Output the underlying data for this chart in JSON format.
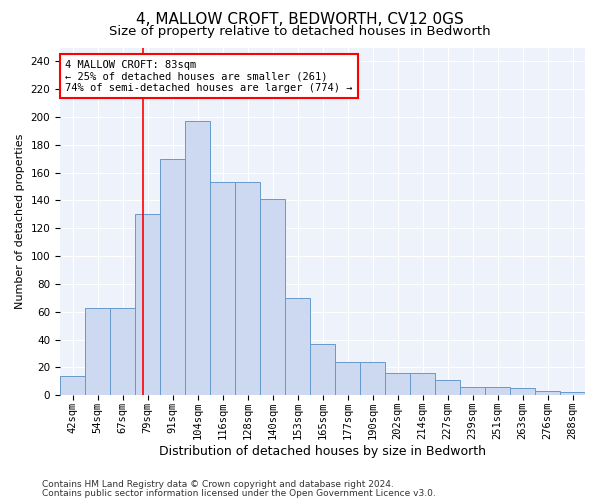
{
  "title": "4, MALLOW CROFT, BEDWORTH, CV12 0GS",
  "subtitle": "Size of property relative to detached houses in Bedworth",
  "xlabel": "Distribution of detached houses by size in Bedworth",
  "ylabel": "Number of detached properties",
  "categories": [
    "42sqm",
    "54sqm",
    "67sqm",
    "79sqm",
    "91sqm",
    "104sqm",
    "116sqm",
    "128sqm",
    "140sqm",
    "153sqm",
    "165sqm",
    "177sqm",
    "190sqm",
    "202sqm",
    "214sqm",
    "227sqm",
    "239sqm",
    "251sqm",
    "263sqm",
    "276sqm",
    "288sqm"
  ],
  "values": [
    14,
    63,
    63,
    130,
    170,
    197,
    153,
    153,
    141,
    70,
    37,
    24,
    24,
    16,
    16,
    11,
    6,
    6,
    5,
    3,
    2
  ],
  "bar_color": "#ccd9f0",
  "bar_edge_color": "#6699cc",
  "annotation_line1": "4 MALLOW CROFT: 83sqm",
  "annotation_line2": "← 25% of detached houses are smaller (261)",
  "annotation_line3": "74% of semi-detached houses are larger (774) →",
  "annotation_box_color": "white",
  "annotation_box_edge_color": "red",
  "vline_color": "red",
  "ylim": [
    0,
    250
  ],
  "yticks": [
    0,
    20,
    40,
    60,
    80,
    100,
    120,
    140,
    160,
    180,
    200,
    220,
    240
  ],
  "footer_line1": "Contains HM Land Registry data © Crown copyright and database right 2024.",
  "footer_line2": "Contains public sector information licensed under the Open Government Licence v3.0.",
  "bg_color": "#eef2fb",
  "grid_color": "white",
  "title_fontsize": 11,
  "subtitle_fontsize": 9.5,
  "xlabel_fontsize": 9,
  "ylabel_fontsize": 8,
  "tick_fontsize": 7.5,
  "footer_fontsize": 6.5
}
